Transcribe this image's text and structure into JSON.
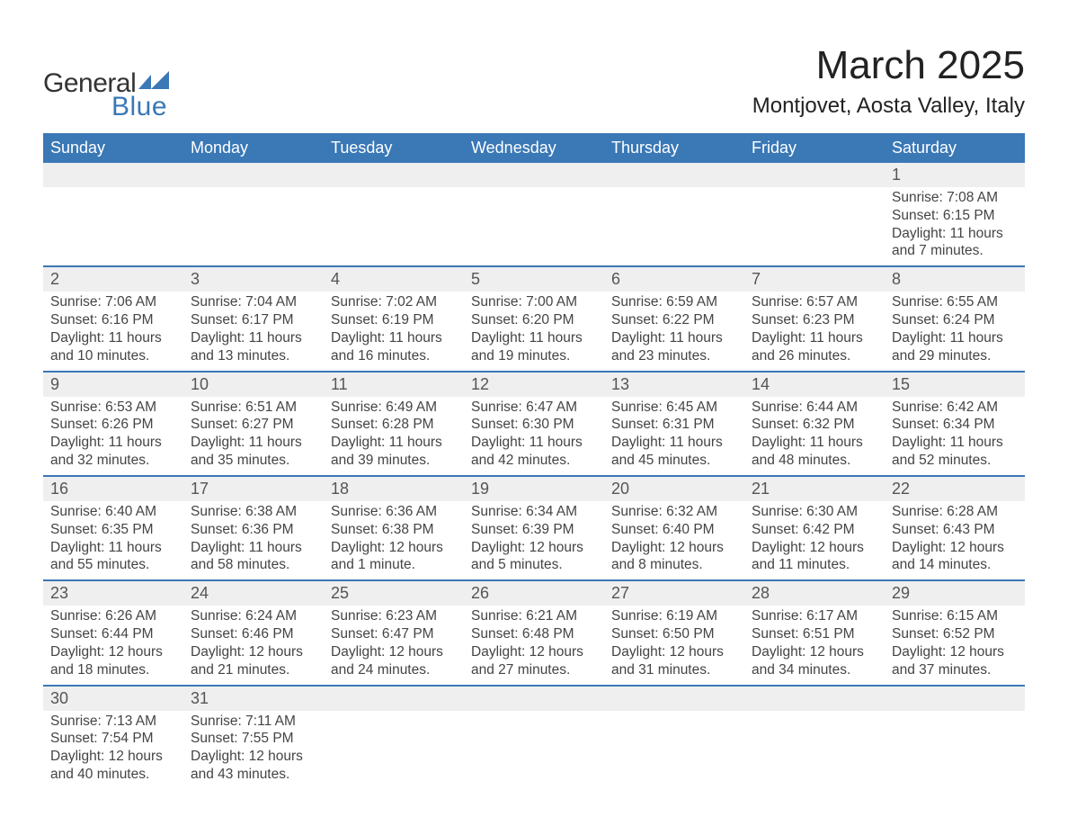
{
  "brand": {
    "word1": "General",
    "word2": "Blue",
    "accent": "#3a78b6",
    "text_color": "#333333"
  },
  "title": "March 2025",
  "subtitle": "Montjovet, Aosta Valley, Italy",
  "calendar": {
    "days_of_week": [
      "Sunday",
      "Monday",
      "Tuesday",
      "Wednesday",
      "Thursday",
      "Friday",
      "Saturday"
    ],
    "header_bg": "#3a78b6",
    "header_text_color": "#ffffff",
    "row_border_color": "#3a78b6",
    "daynum_bg": "#efefef",
    "body_text_color": "#444444",
    "font_size_header": 18,
    "font_size_body": 15.5,
    "weeks": [
      [
        null,
        null,
        null,
        null,
        null,
        null,
        {
          "n": "1",
          "sunrise": "Sunrise: 7:08 AM",
          "sunset": "Sunset: 6:15 PM",
          "day1": "Daylight: 11 hours",
          "day2": "and 7 minutes."
        }
      ],
      [
        {
          "n": "2",
          "sunrise": "Sunrise: 7:06 AM",
          "sunset": "Sunset: 6:16 PM",
          "day1": "Daylight: 11 hours",
          "day2": "and 10 minutes."
        },
        {
          "n": "3",
          "sunrise": "Sunrise: 7:04 AM",
          "sunset": "Sunset: 6:17 PM",
          "day1": "Daylight: 11 hours",
          "day2": "and 13 minutes."
        },
        {
          "n": "4",
          "sunrise": "Sunrise: 7:02 AM",
          "sunset": "Sunset: 6:19 PM",
          "day1": "Daylight: 11 hours",
          "day2": "and 16 minutes."
        },
        {
          "n": "5",
          "sunrise": "Sunrise: 7:00 AM",
          "sunset": "Sunset: 6:20 PM",
          "day1": "Daylight: 11 hours",
          "day2": "and 19 minutes."
        },
        {
          "n": "6",
          "sunrise": "Sunrise: 6:59 AM",
          "sunset": "Sunset: 6:22 PM",
          "day1": "Daylight: 11 hours",
          "day2": "and 23 minutes."
        },
        {
          "n": "7",
          "sunrise": "Sunrise: 6:57 AM",
          "sunset": "Sunset: 6:23 PM",
          "day1": "Daylight: 11 hours",
          "day2": "and 26 minutes."
        },
        {
          "n": "8",
          "sunrise": "Sunrise: 6:55 AM",
          "sunset": "Sunset: 6:24 PM",
          "day1": "Daylight: 11 hours",
          "day2": "and 29 minutes."
        }
      ],
      [
        {
          "n": "9",
          "sunrise": "Sunrise: 6:53 AM",
          "sunset": "Sunset: 6:26 PM",
          "day1": "Daylight: 11 hours",
          "day2": "and 32 minutes."
        },
        {
          "n": "10",
          "sunrise": "Sunrise: 6:51 AM",
          "sunset": "Sunset: 6:27 PM",
          "day1": "Daylight: 11 hours",
          "day2": "and 35 minutes."
        },
        {
          "n": "11",
          "sunrise": "Sunrise: 6:49 AM",
          "sunset": "Sunset: 6:28 PM",
          "day1": "Daylight: 11 hours",
          "day2": "and 39 minutes."
        },
        {
          "n": "12",
          "sunrise": "Sunrise: 6:47 AM",
          "sunset": "Sunset: 6:30 PM",
          "day1": "Daylight: 11 hours",
          "day2": "and 42 minutes."
        },
        {
          "n": "13",
          "sunrise": "Sunrise: 6:45 AM",
          "sunset": "Sunset: 6:31 PM",
          "day1": "Daylight: 11 hours",
          "day2": "and 45 minutes."
        },
        {
          "n": "14",
          "sunrise": "Sunrise: 6:44 AM",
          "sunset": "Sunset: 6:32 PM",
          "day1": "Daylight: 11 hours",
          "day2": "and 48 minutes."
        },
        {
          "n": "15",
          "sunrise": "Sunrise: 6:42 AM",
          "sunset": "Sunset: 6:34 PM",
          "day1": "Daylight: 11 hours",
          "day2": "and 52 minutes."
        }
      ],
      [
        {
          "n": "16",
          "sunrise": "Sunrise: 6:40 AM",
          "sunset": "Sunset: 6:35 PM",
          "day1": "Daylight: 11 hours",
          "day2": "and 55 minutes."
        },
        {
          "n": "17",
          "sunrise": "Sunrise: 6:38 AM",
          "sunset": "Sunset: 6:36 PM",
          "day1": "Daylight: 11 hours",
          "day2": "and 58 minutes."
        },
        {
          "n": "18",
          "sunrise": "Sunrise: 6:36 AM",
          "sunset": "Sunset: 6:38 PM",
          "day1": "Daylight: 12 hours",
          "day2": "and 1 minute."
        },
        {
          "n": "19",
          "sunrise": "Sunrise: 6:34 AM",
          "sunset": "Sunset: 6:39 PM",
          "day1": "Daylight: 12 hours",
          "day2": "and 5 minutes."
        },
        {
          "n": "20",
          "sunrise": "Sunrise: 6:32 AM",
          "sunset": "Sunset: 6:40 PM",
          "day1": "Daylight: 12 hours",
          "day2": "and 8 minutes."
        },
        {
          "n": "21",
          "sunrise": "Sunrise: 6:30 AM",
          "sunset": "Sunset: 6:42 PM",
          "day1": "Daylight: 12 hours",
          "day2": "and 11 minutes."
        },
        {
          "n": "22",
          "sunrise": "Sunrise: 6:28 AM",
          "sunset": "Sunset: 6:43 PM",
          "day1": "Daylight: 12 hours",
          "day2": "and 14 minutes."
        }
      ],
      [
        {
          "n": "23",
          "sunrise": "Sunrise: 6:26 AM",
          "sunset": "Sunset: 6:44 PM",
          "day1": "Daylight: 12 hours",
          "day2": "and 18 minutes."
        },
        {
          "n": "24",
          "sunrise": "Sunrise: 6:24 AM",
          "sunset": "Sunset: 6:46 PM",
          "day1": "Daylight: 12 hours",
          "day2": "and 21 minutes."
        },
        {
          "n": "25",
          "sunrise": "Sunrise: 6:23 AM",
          "sunset": "Sunset: 6:47 PM",
          "day1": "Daylight: 12 hours",
          "day2": "and 24 minutes."
        },
        {
          "n": "26",
          "sunrise": "Sunrise: 6:21 AM",
          "sunset": "Sunset: 6:48 PM",
          "day1": "Daylight: 12 hours",
          "day2": "and 27 minutes."
        },
        {
          "n": "27",
          "sunrise": "Sunrise: 6:19 AM",
          "sunset": "Sunset: 6:50 PM",
          "day1": "Daylight: 12 hours",
          "day2": "and 31 minutes."
        },
        {
          "n": "28",
          "sunrise": "Sunrise: 6:17 AM",
          "sunset": "Sunset: 6:51 PM",
          "day1": "Daylight: 12 hours",
          "day2": "and 34 minutes."
        },
        {
          "n": "29",
          "sunrise": "Sunrise: 6:15 AM",
          "sunset": "Sunset: 6:52 PM",
          "day1": "Daylight: 12 hours",
          "day2": "and 37 minutes."
        }
      ],
      [
        {
          "n": "30",
          "sunrise": "Sunrise: 7:13 AM",
          "sunset": "Sunset: 7:54 PM",
          "day1": "Daylight: 12 hours",
          "day2": "and 40 minutes."
        },
        {
          "n": "31",
          "sunrise": "Sunrise: 7:11 AM",
          "sunset": "Sunset: 7:55 PM",
          "day1": "Daylight: 12 hours",
          "day2": "and 43 minutes."
        },
        null,
        null,
        null,
        null,
        null
      ]
    ]
  }
}
